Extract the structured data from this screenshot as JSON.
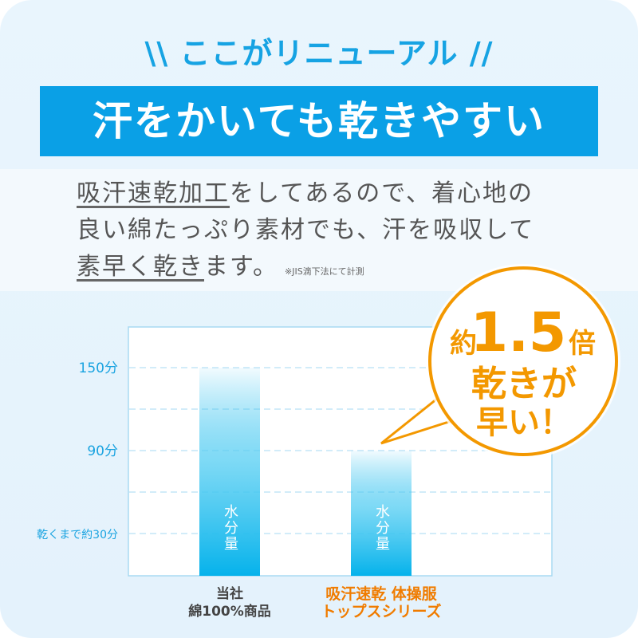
{
  "header": {
    "headline": "\\\\ ここがリニューアル //",
    "banner": "汗をかいても乾きやすい"
  },
  "description": {
    "u1": "吸汗速乾加工",
    "t1": "をしてあるので、着心地の",
    "line2": "良い綿たっぷり素材でも、汗を吸収して",
    "u3": "素早く乾き",
    "t3": "ます。",
    "note": "※JIS滴下法にて計測"
  },
  "callout": {
    "prefix": "約",
    "number": "1.5",
    "suffix": "倍",
    "line2": "乾きが",
    "line3": "早い！",
    "color": "#f39800"
  },
  "chart_data": {
    "type": "bar",
    "categories": [
      "当社\n綿100%商品",
      "吸汗速乾 体操服\nトップスシリーズ"
    ],
    "values": [
      150,
      90
    ],
    "ylim": [
      0,
      150
    ],
    "ytick_labels": [
      {
        "value": 150,
        "label": "150分"
      },
      {
        "value": 90,
        "label": "90分"
      },
      {
        "value": 30,
        "label": "乾くまで約30分"
      }
    ],
    "gridlines": [
      30,
      60,
      90,
      120,
      150
    ],
    "bar_label": "水分量",
    "grid": true,
    "colors": {
      "bar": "#0ab4ec",
      "axis_text": "#1aa3e0",
      "highlight_category": "#f07c00",
      "normal_category": "#444444"
    }
  }
}
